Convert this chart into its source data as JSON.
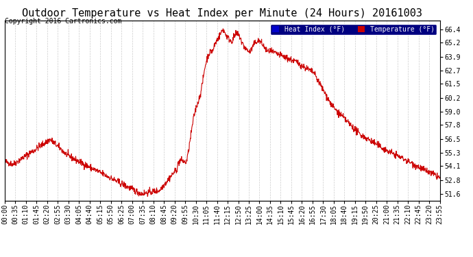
{
  "title": "Outdoor Temperature vs Heat Index per Minute (24 Hours) 20161003",
  "copyright": "Copyright 2016 Cartronics.com",
  "legend_labels": [
    "Heat Index (°F)",
    "Temperature (°F)"
  ],
  "legend_colors": [
    "#0000cc",
    "#cc0000"
  ],
  "line_color": "#cc0000",
  "bg_color": "#ffffff",
  "grid_color": "#cccccc",
  "ylabel_right": true,
  "yticks": [
    51.6,
    52.8,
    54.1,
    55.3,
    56.5,
    57.8,
    59.0,
    60.2,
    61.5,
    62.7,
    63.9,
    65.2,
    66.4
  ],
  "xlim_minutes": [
    0,
    1435
  ],
  "ylim": [
    51.0,
    67.2
  ],
  "xtick_interval": 35,
  "title_fontsize": 11,
  "copyright_fontsize": 7,
  "axis_fontsize": 7
}
